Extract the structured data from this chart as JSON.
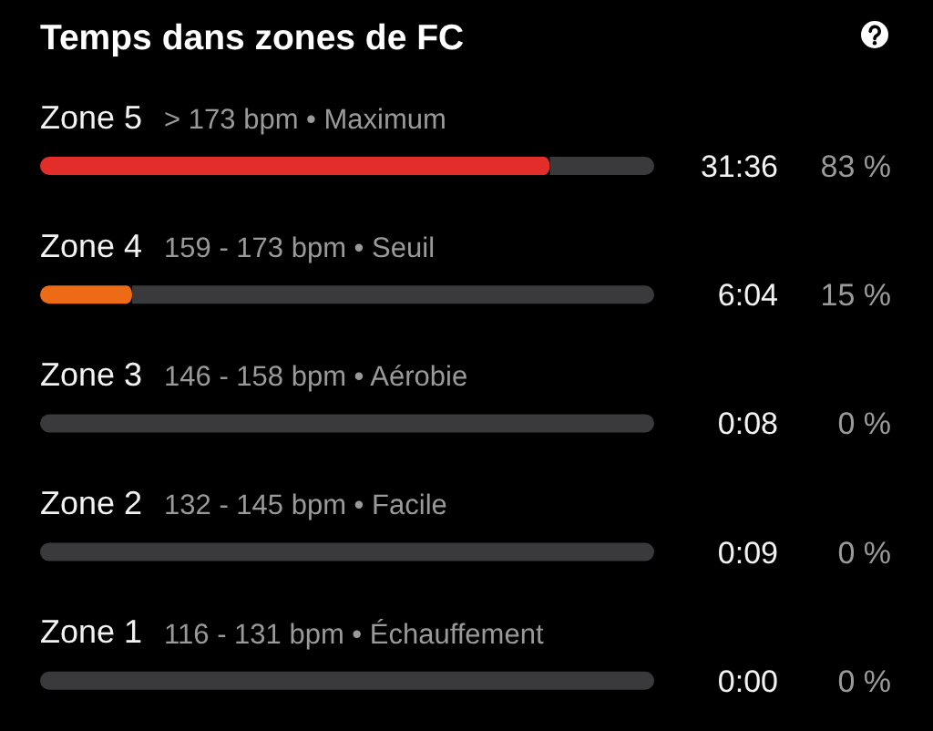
{
  "chart_data": {
    "type": "bar",
    "orientation": "horizontal",
    "stacked": true,
    "title": "Temps dans zones de FC",
    "categories": [
      "Zone 5",
      "Zone 4",
      "Zone 3",
      "Zone 2",
      "Zone 1"
    ],
    "series": [
      {
        "values": [
          83,
          15,
          0,
          0,
          0
        ],
        "colors": [
          "#e22d2b",
          "#ed6b16",
          null,
          null,
          null
        ],
        "value_labels": [
          "83 %",
          "15 %",
          "0 %",
          "0 %",
          "0 %"
        ]
      },
      {
        "values": [
          17,
          85,
          100,
          100,
          100
        ],
        "color": "#3a3a3c"
      }
    ],
    "xlim": [
      0,
      100
    ],
    "tick_labels": "y",
    "annotations": [
      "> 173 bpm • Maximum",
      "31:36",
      "159 - 173 bpm • Seuil",
      "6:04",
      "146 - 158 bpm • Aérobie",
      "0:08",
      "132 - 145 bpm • Facile",
      "0:09",
      "116 - 131 bpm • Échauffement",
      "0:00"
    ]
  }
}
